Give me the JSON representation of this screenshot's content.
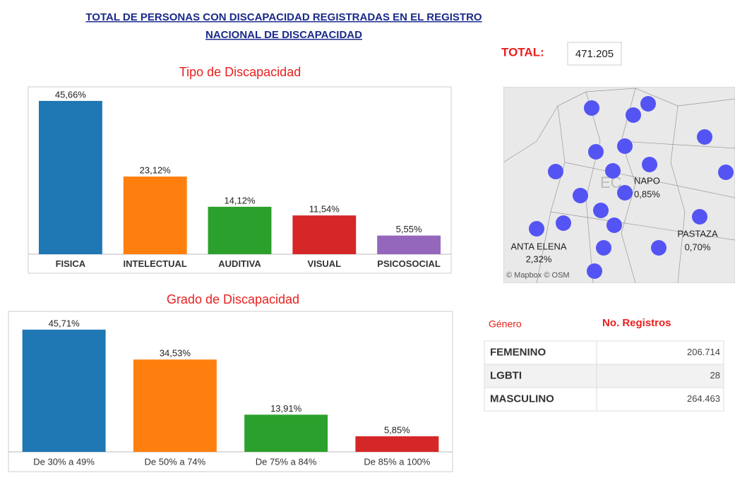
{
  "header": {
    "title_lines": [
      "TOTAL DE PERSONAS CON DISCAPACIDAD REGISTRADAS EN EL REGISTRO",
      "NACIONAL DE DISCAPACIDAD"
    ],
    "total_label": "TOTAL:",
    "total_value": "471.205"
  },
  "chart_data": [
    {
      "type": "bar",
      "title": "Tipo de Discapacidad",
      "categories": [
        "FISICA",
        "INTELECTUAL",
        "AUDITIVA",
        "VISUAL",
        "PSICOSOCIAL"
      ],
      "values": [
        45.66,
        23.12,
        14.12,
        11.54,
        5.55
      ],
      "value_labels": [
        "45,66%",
        "23,12%",
        "14,12%",
        "11,54%",
        "5,55%"
      ],
      "colors": [
        "#1f77b4",
        "#ff7f0e",
        "#2ca02c",
        "#d62728",
        "#9467bd"
      ]
    },
    {
      "type": "bar",
      "title": "Grado de Discapacidad",
      "categories": [
        "De 30% a 49%",
        "De 50% a 74%",
        "De 75% a 84%",
        "De 85% a 100%"
      ],
      "values": [
        45.71,
        34.53,
        13.91,
        5.85
      ],
      "value_labels": [
        "45,71%",
        "34,53%",
        "13,91%",
        "5,85%"
      ],
      "colors": [
        "#1f77b4",
        "#ff7f0e",
        "#2ca02c",
        "#d62728"
      ]
    }
  ],
  "map": {
    "labels": [
      {
        "name": "NAPO",
        "share": "0,85%"
      },
      {
        "name": "ANTA ELENA",
        "share": "2,32%"
      },
      {
        "name": "PASTAZA",
        "share": "0,70%"
      }
    ],
    "country_fragment": "EC",
    "attribution": "© Mapbox © OSM"
  },
  "table": {
    "headers": [
      "Género",
      "No. Registros"
    ],
    "rows": [
      [
        "FEMENINO",
        "206.714"
      ],
      [
        "LGBTI",
        "28"
      ],
      [
        "MASCULINO",
        "264.463"
      ]
    ]
  }
}
